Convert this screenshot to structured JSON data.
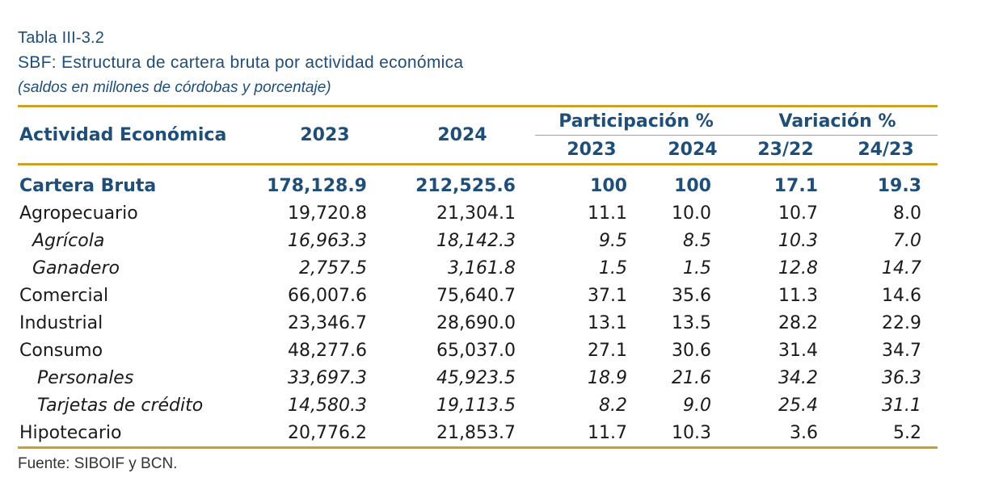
{
  "caption": "Tabla III-3.2",
  "title": "SBF: Estructura de cartera bruta por actividad económica",
  "subtitle": "(saldos en millones de córdobas y porcentaje)",
  "header": {
    "activity": "Actividad Económica",
    "y2023": "2023",
    "y2024": "2024",
    "participacion": "Participación %",
    "variacion": "Variación %",
    "p2023": "2023",
    "p2024": "2024",
    "v2322": "23/22",
    "v2423": "24/23"
  },
  "rows": [
    {
      "label": "Cartera Bruta",
      "s2023": "178,128.9",
      "s2024": "212,525.6",
      "p2023": "100",
      "p2024": "100",
      "v2322": "17.1",
      "v2423": "19.3"
    },
    {
      "label": "Agropecuario",
      "s2023": "19,720.8",
      "s2024": "21,304.1",
      "p2023": "11.1",
      "p2024": "10.0",
      "v2322": "10.7",
      "v2423": "8.0"
    },
    {
      "label": "Agrícola",
      "s2023": "16,963.3",
      "s2024": "18,142.3",
      "p2023": "9.5",
      "p2024": "8.5",
      "v2322": "10.3",
      "v2423": "7.0"
    },
    {
      "label": "Ganadero",
      "s2023": "2,757.5",
      "s2024": "3,161.8",
      "p2023": "1.5",
      "p2024": "1.5",
      "v2322": "12.8",
      "v2423": "14.7"
    },
    {
      "label": "Comercial",
      "s2023": "66,007.6",
      "s2024": "75,640.7",
      "p2023": "37.1",
      "p2024": "35.6",
      "v2322": "11.3",
      "v2423": "14.6"
    },
    {
      "label": "Industrial",
      "s2023": "23,346.7",
      "s2024": "28,690.0",
      "p2023": "13.1",
      "p2024": "13.5",
      "v2322": "28.2",
      "v2423": "22.9"
    },
    {
      "label": "Consumo",
      "s2023": "48,277.6",
      "s2024": "65,037.0",
      "p2023": "27.1",
      "p2024": "30.6",
      "v2322": "31.4",
      "v2423": "34.7"
    },
    {
      "label": "Personales",
      "s2023": "33,697.3",
      "s2024": "45,923.5",
      "p2023": "18.9",
      "p2024": "21.6",
      "v2322": "34.2",
      "v2423": "36.3"
    },
    {
      "label": "Tarjetas de crédito",
      "s2023": "14,580.3",
      "s2024": "19,113.5",
      "p2023": "8.2",
      "p2024": "9.0",
      "v2322": "25.4",
      "v2423": "31.1"
    },
    {
      "label": "Hipotecario",
      "s2023": "20,776.2",
      "s2024": "21,853.7",
      "p2023": "11.7",
      "p2024": "10.3",
      "v2322": "3.6",
      "v2423": "5.2"
    }
  ],
  "source": "Fuente: SIBOIF y BCN.",
  "colors": {
    "accent_blue": "#1f4e79",
    "rule_gold": "#c9a227"
  }
}
